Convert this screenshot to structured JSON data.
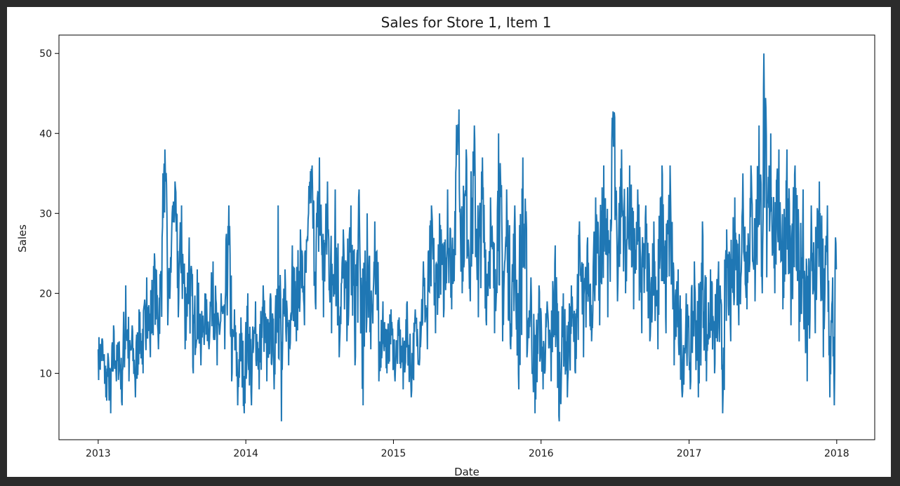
{
  "chart_data": {
    "type": "line",
    "title": "Sales for Store 1, Item 1",
    "xlabel": "Date",
    "ylabel": "Sales",
    "x_range": [
      "2013-01-01",
      "2017-12-31"
    ],
    "xlim": [
      "2012-09-26",
      "2018-04-05"
    ],
    "ylim": [
      1.7,
      52.3
    ],
    "x_ticks": [
      {
        "date": "2013-01-01",
        "label": "2013"
      },
      {
        "date": "2014-01-01",
        "label": "2014"
      },
      {
        "date": "2015-01-01",
        "label": "2015"
      },
      {
        "date": "2016-01-01",
        "label": "2016"
      },
      {
        "date": "2017-01-01",
        "label": "2017"
      },
      {
        "date": "2018-01-01",
        "label": "2018"
      }
    ],
    "y_ticks": [
      10,
      20,
      30,
      40,
      50
    ],
    "grid": false,
    "legend": "none",
    "series": [
      {
        "color": "#1f77b4",
        "frequency": "daily",
        "points": [
          [
            "2013-01-01",
            13
          ],
          [
            "2013-01-05",
            11
          ],
          [
            "2013-01-12",
            14
          ],
          [
            "2013-01-20",
            7
          ],
          [
            "2013-01-26",
            12
          ],
          [
            "2013-02-01",
            5
          ],
          [
            "2013-02-08",
            16
          ],
          [
            "2013-02-15",
            9
          ],
          [
            "2013-02-22",
            14
          ],
          [
            "2013-03-01",
            6
          ],
          [
            "2013-03-10",
            21
          ],
          [
            "2013-03-18",
            9
          ],
          [
            "2013-03-26",
            16
          ],
          [
            "2013-04-03",
            7
          ],
          [
            "2013-04-12",
            18
          ],
          [
            "2013-04-22",
            10
          ],
          [
            "2013-05-01",
            22
          ],
          [
            "2013-05-10",
            12
          ],
          [
            "2013-05-20",
            25
          ],
          [
            "2013-05-30",
            13
          ],
          [
            "2013-06-08",
            27
          ],
          [
            "2013-06-15",
            38
          ],
          [
            "2013-06-22",
            16
          ],
          [
            "2013-07-01",
            26
          ],
          [
            "2013-07-10",
            34
          ],
          [
            "2013-07-18",
            17
          ],
          [
            "2013-07-26",
            31
          ],
          [
            "2013-08-04",
            13
          ],
          [
            "2013-08-14",
            27
          ],
          [
            "2013-08-24",
            10
          ],
          [
            "2013-09-03",
            23
          ],
          [
            "2013-09-12",
            11
          ],
          [
            "2013-09-22",
            20
          ],
          [
            "2013-10-02",
            13
          ],
          [
            "2013-10-12",
            24
          ],
          [
            "2013-10-22",
            11
          ],
          [
            "2013-11-01",
            20
          ],
          [
            "2013-11-10",
            13
          ],
          [
            "2013-11-20",
            31
          ],
          [
            "2013-11-27",
            9
          ],
          [
            "2013-12-04",
            18
          ],
          [
            "2013-12-12",
            6
          ],
          [
            "2013-12-20",
            17
          ],
          [
            "2013-12-28",
            5
          ],
          [
            "2014-01-06",
            20
          ],
          [
            "2014-01-15",
            6
          ],
          [
            "2014-01-25",
            19
          ],
          [
            "2014-02-03",
            8
          ],
          [
            "2014-02-13",
            21
          ],
          [
            "2014-02-22",
            9
          ],
          [
            "2014-03-03",
            20
          ],
          [
            "2014-03-12",
            8
          ],
          [
            "2014-03-22",
            31
          ],
          [
            "2014-03-30",
            4
          ],
          [
            "2014-04-08",
            23
          ],
          [
            "2014-04-17",
            11
          ],
          [
            "2014-04-26",
            26
          ],
          [
            "2014-05-06",
            14
          ],
          [
            "2014-05-16",
            28
          ],
          [
            "2014-05-26",
            16
          ],
          [
            "2014-06-05",
            30
          ],
          [
            "2014-06-14",
            36
          ],
          [
            "2014-06-23",
            18
          ],
          [
            "2014-07-02",
            37
          ],
          [
            "2014-07-12",
            17
          ],
          [
            "2014-07-22",
            34
          ],
          [
            "2014-08-01",
            15
          ],
          [
            "2014-08-10",
            33
          ],
          [
            "2014-08-20",
            12
          ],
          [
            "2014-08-30",
            28
          ],
          [
            "2014-09-08",
            14
          ],
          [
            "2014-09-18",
            31
          ],
          [
            "2014-09-28",
            11
          ],
          [
            "2014-10-08",
            33
          ],
          [
            "2014-10-18",
            6
          ],
          [
            "2014-10-28",
            30
          ],
          [
            "2014-11-06",
            13
          ],
          [
            "2014-11-16",
            29
          ],
          [
            "2014-11-26",
            9
          ],
          [
            "2014-12-06",
            19
          ],
          [
            "2014-12-16",
            10
          ],
          [
            "2014-12-26",
            18
          ],
          [
            "2015-01-05",
            9
          ],
          [
            "2015-01-15",
            17
          ],
          [
            "2015-01-25",
            8
          ],
          [
            "2015-02-04",
            19
          ],
          [
            "2015-02-14",
            7
          ],
          [
            "2015-02-24",
            18
          ],
          [
            "2015-03-06",
            11
          ],
          [
            "2015-03-16",
            24
          ],
          [
            "2015-03-26",
            13
          ],
          [
            "2015-04-05",
            31
          ],
          [
            "2015-04-15",
            15
          ],
          [
            "2015-04-25",
            30
          ],
          [
            "2015-05-05",
            17
          ],
          [
            "2015-05-15",
            33
          ],
          [
            "2015-05-25",
            18
          ],
          [
            "2015-06-05",
            36
          ],
          [
            "2015-06-12",
            43
          ],
          [
            "2015-06-20",
            20
          ],
          [
            "2015-06-30",
            38
          ],
          [
            "2015-07-10",
            19
          ],
          [
            "2015-07-20",
            41
          ],
          [
            "2015-07-30",
            17
          ],
          [
            "2015-08-09",
            37
          ],
          [
            "2015-08-19",
            16
          ],
          [
            "2015-08-29",
            32
          ],
          [
            "2015-09-08",
            15
          ],
          [
            "2015-09-18",
            40
          ],
          [
            "2015-09-28",
            14
          ],
          [
            "2015-10-08",
            33
          ],
          [
            "2015-10-18",
            13
          ],
          [
            "2015-10-28",
            31
          ],
          [
            "2015-11-07",
            8
          ],
          [
            "2015-11-17",
            37
          ],
          [
            "2015-11-27",
            12
          ],
          [
            "2015-12-07",
            22
          ],
          [
            "2015-12-17",
            5
          ],
          [
            "2015-12-27",
            21
          ],
          [
            "2016-01-06",
            8
          ],
          [
            "2016-01-16",
            19
          ],
          [
            "2016-01-26",
            9
          ],
          [
            "2016-02-05",
            26
          ],
          [
            "2016-02-15",
            4
          ],
          [
            "2016-02-25",
            20
          ],
          [
            "2016-03-06",
            7
          ],
          [
            "2016-03-16",
            21
          ],
          [
            "2016-03-26",
            10
          ],
          [
            "2016-04-05",
            29
          ],
          [
            "2016-04-15",
            12
          ],
          [
            "2016-04-25",
            27
          ],
          [
            "2016-05-05",
            14
          ],
          [
            "2016-05-15",
            32
          ],
          [
            "2016-05-25",
            16
          ],
          [
            "2016-06-04",
            36
          ],
          [
            "2016-06-14",
            17
          ],
          [
            "2016-06-24",
            39
          ],
          [
            "2016-07-01",
            42
          ],
          [
            "2016-07-08",
            19
          ],
          [
            "2016-07-18",
            38
          ],
          [
            "2016-07-28",
            20
          ],
          [
            "2016-08-07",
            36
          ],
          [
            "2016-08-17",
            18
          ],
          [
            "2016-08-27",
            33
          ],
          [
            "2016-09-06",
            15
          ],
          [
            "2016-09-16",
            31
          ],
          [
            "2016-09-26",
            14
          ],
          [
            "2016-10-06",
            29
          ],
          [
            "2016-10-16",
            13
          ],
          [
            "2016-10-26",
            36
          ],
          [
            "2016-11-05",
            15
          ],
          [
            "2016-11-15",
            36
          ],
          [
            "2016-11-25",
            11
          ],
          [
            "2016-12-05",
            23
          ],
          [
            "2016-12-15",
            7
          ],
          [
            "2016-12-25",
            20
          ],
          [
            "2017-01-04",
            8
          ],
          [
            "2017-01-14",
            24
          ],
          [
            "2017-01-24",
            7
          ],
          [
            "2017-02-03",
            29
          ],
          [
            "2017-02-13",
            9
          ],
          [
            "2017-02-23",
            23
          ],
          [
            "2017-03-05",
            10
          ],
          [
            "2017-03-15",
            24
          ],
          [
            "2017-03-25",
            5
          ],
          [
            "2017-04-04",
            28
          ],
          [
            "2017-04-14",
            14
          ],
          [
            "2017-04-24",
            32
          ],
          [
            "2017-05-04",
            16
          ],
          [
            "2017-05-14",
            35
          ],
          [
            "2017-05-24",
            18
          ],
          [
            "2017-06-03",
            36
          ],
          [
            "2017-06-13",
            19
          ],
          [
            "2017-06-23",
            41
          ],
          [
            "2017-07-01",
            20
          ],
          [
            "2017-07-05",
            50
          ],
          [
            "2017-07-12",
            22
          ],
          [
            "2017-07-22",
            40
          ],
          [
            "2017-08-01",
            20
          ],
          [
            "2017-08-11",
            38
          ],
          [
            "2017-08-21",
            18
          ],
          [
            "2017-08-31",
            38
          ],
          [
            "2017-09-10",
            16
          ],
          [
            "2017-09-20",
            36
          ],
          [
            "2017-09-30",
            14
          ],
          [
            "2017-10-10",
            33
          ],
          [
            "2017-10-20",
            9
          ],
          [
            "2017-10-30",
            31
          ],
          [
            "2017-11-09",
            15
          ],
          [
            "2017-11-19",
            34
          ],
          [
            "2017-11-29",
            12
          ],
          [
            "2017-12-09",
            31
          ],
          [
            "2017-12-15",
            7
          ],
          [
            "2017-12-22",
            22
          ],
          [
            "2017-12-26",
            6
          ],
          [
            "2017-12-29",
            27
          ],
          [
            "2017-12-31",
            23
          ]
        ]
      }
    ]
  }
}
